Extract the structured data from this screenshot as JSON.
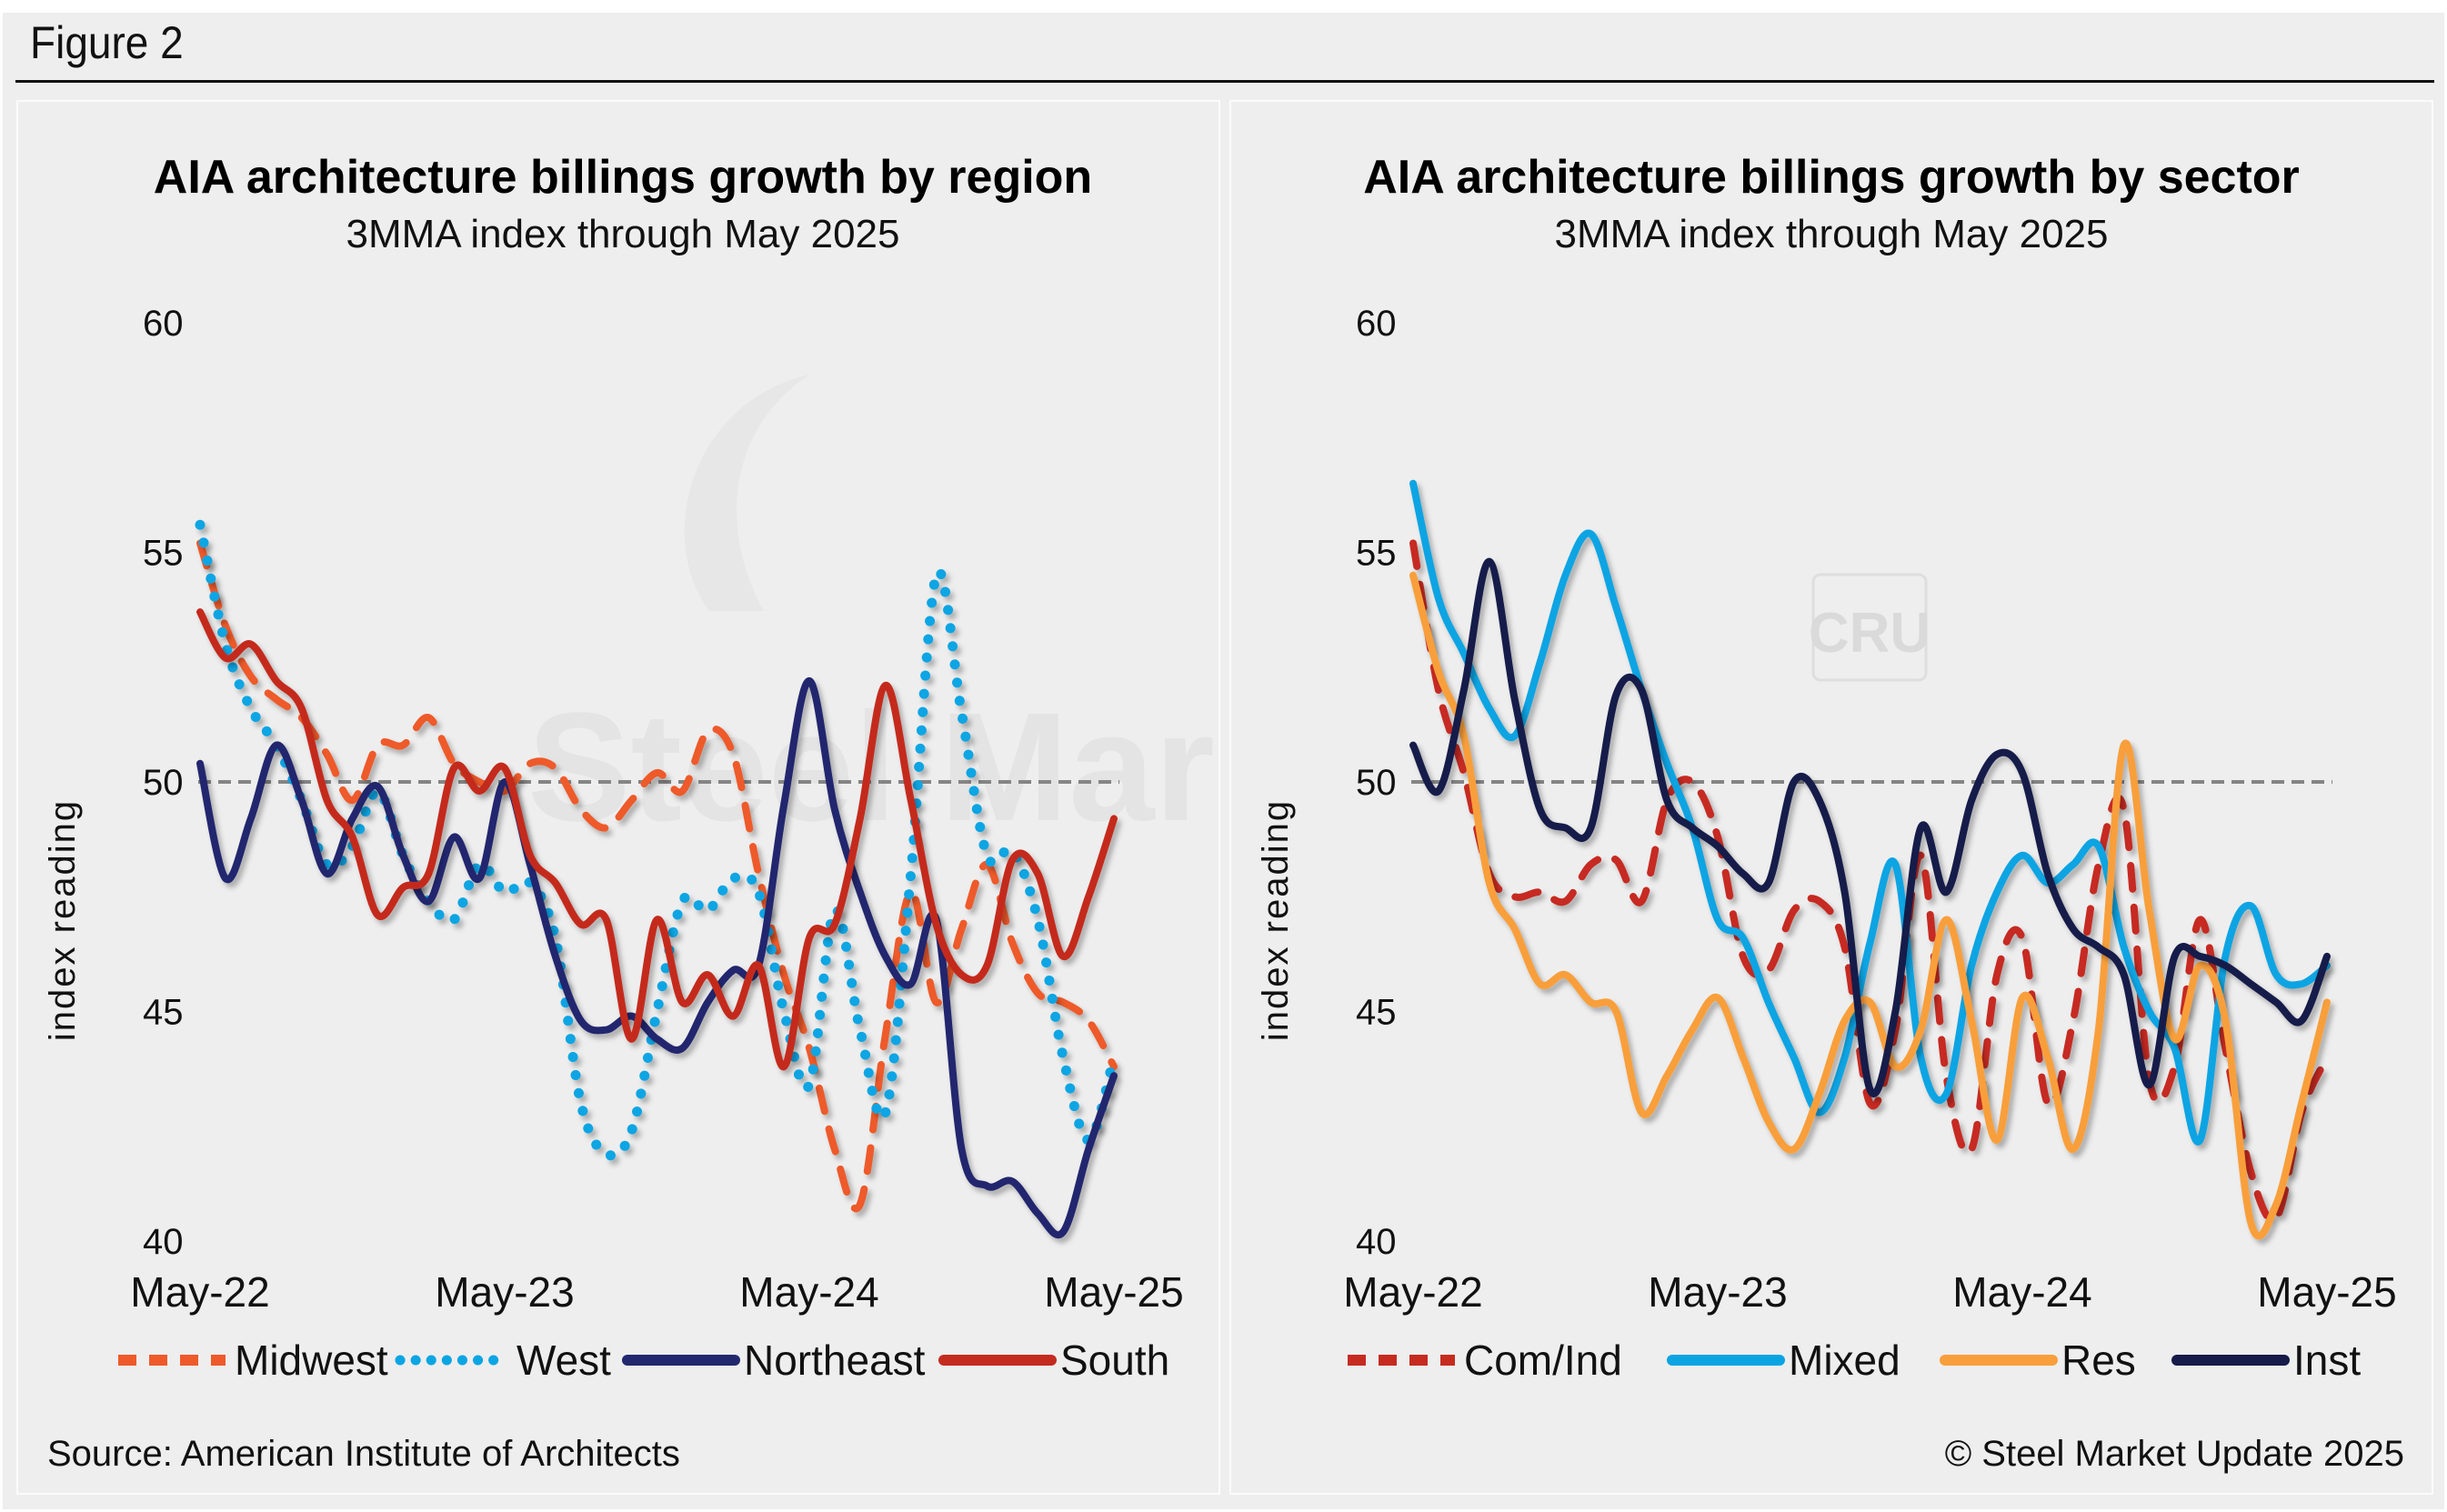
{
  "figure_label": "Figure 2",
  "watermark": {
    "brand": "Steel Market Update",
    "logo": "CRU"
  },
  "chart_data": [
    {
      "type": "line",
      "title": "AIA architecture billings growth by region",
      "subtitle": "3MMA index through May 2025",
      "xlabel": "",
      "ylabel": "index reading",
      "ylim": [
        40,
        60
      ],
      "yticks": [
        40,
        45,
        50,
        55,
        60
      ],
      "xticks": [
        "May-22",
        "May-23",
        "May-24",
        "May-25"
      ],
      "x_start": "May-22",
      "x_end": "May-25",
      "frequency": "monthly",
      "reference_line": {
        "value": 50,
        "style": "dashed",
        "color": "#858585"
      },
      "legend_position": "bottom",
      "grid": false,
      "source": "Source: American Institute of Architects",
      "series": [
        {
          "name": "Midwest",
          "style": "dashed",
          "color": "#ee5a2a",
          "values": [
            55.2,
            53.4,
            52.3,
            51.8,
            51.4,
            50.6,
            49.6,
            50.8,
            50.8,
            51.4,
            50.4,
            50.0,
            49.8,
            50.4,
            50.3,
            49.4,
            49.0,
            49.6,
            50.2,
            49.8,
            51.1,
            50.6,
            48.0,
            45.8,
            44.2,
            42.0,
            40.8,
            44.5,
            47.6,
            45.2,
            46.8,
            48.2,
            46.5,
            45.4,
            45.2,
            44.8,
            43.8
          ]
        },
        {
          "name": "West",
          "style": "dotted",
          "color": "#0aa5e3",
          "values": [
            55.6,
            53.0,
            51.6,
            50.8,
            49.6,
            48.2,
            48.6,
            49.8,
            48.4,
            47.4,
            47.0,
            48.2,
            47.6,
            47.8,
            46.6,
            43.0,
            41.9,
            42.4,
            45.0,
            47.4,
            47.2,
            47.9,
            47.6,
            45.0,
            43.4,
            47.2,
            44.6,
            42.8,
            48.0,
            54.5,
            51.5,
            48.4,
            48.5,
            47.0,
            44.0,
            42.2,
            44.0
          ]
        },
        {
          "name": "Northeast",
          "style": "solid",
          "color": "#22286e",
          "values": [
            50.4,
            47.9,
            49.2,
            50.8,
            49.6,
            48.0,
            49.2,
            49.9,
            48.4,
            47.4,
            48.8,
            47.9,
            50.0,
            48.2,
            46.2,
            44.8,
            44.6,
            44.9,
            44.4,
            44.2,
            45.2,
            45.9,
            46.0,
            49.5,
            52.2,
            49.4,
            47.6,
            46.2,
            45.6,
            47.0,
            42.0,
            41.2,
            41.3,
            40.6,
            40.2,
            42.0,
            43.6
          ]
        },
        {
          "name": "South",
          "style": "solid",
          "color": "#c42b1f",
          "values": [
            53.7,
            52.7,
            53.0,
            52.2,
            51.6,
            49.6,
            48.8,
            47.1,
            47.7,
            48.0,
            50.3,
            49.8,
            50.3,
            48.4,
            47.8,
            46.9,
            47.0,
            44.4,
            47.0,
            45.2,
            45.8,
            44.9,
            46.0,
            43.8,
            46.6,
            46.9,
            49.2,
            52.1,
            49.6,
            46.9,
            45.8,
            46.0,
            48.3,
            48.0,
            46.2,
            47.5,
            49.2
          ]
        }
      ]
    },
    {
      "type": "line",
      "title": "AIA architecture billings growth by sector",
      "subtitle": "3MMA index through May 2025",
      "xlabel": "",
      "ylabel": "index reading",
      "ylim": [
        40,
        60
      ],
      "yticks": [
        40,
        45,
        50,
        55,
        60
      ],
      "xticks": [
        "May-22",
        "May-23",
        "May-24",
        "May-25"
      ],
      "x_start": "May-22",
      "x_end": "May-25",
      "frequency": "monthly",
      "reference_line": {
        "value": 50,
        "style": "dashed",
        "color": "#858585"
      },
      "legend_position": "bottom",
      "grid": false,
      "source": "© Steel Market Update 2025",
      "series": [
        {
          "name": "Com/Ind",
          "style": "dashed",
          "color": "#c62b20",
          "values": [
            55.2,
            52.0,
            50.2,
            48.0,
            47.5,
            47.6,
            47.4,
            48.2,
            48.3,
            47.4,
            49.6,
            50.0,
            48.8,
            46.2,
            45.9,
            47.2,
            47.4,
            46.4,
            43.0,
            44.6,
            48.4,
            43.6,
            42.0,
            45.8,
            46.6,
            43.0,
            44.8,
            48.2,
            49.4,
            43.5,
            43.8,
            47.0,
            44.2,
            41.5,
            40.5,
            42.8,
            44.0
          ]
        },
        {
          "name": "Mixed",
          "style": "solid",
          "color": "#0aa4e3",
          "values": [
            56.5,
            54.0,
            52.8,
            51.6,
            51.0,
            52.6,
            54.5,
            55.4,
            53.8,
            52.0,
            50.4,
            49.0,
            47.0,
            46.6,
            45.2,
            44.0,
            42.8,
            44.0,
            46.5,
            48.2,
            44.0,
            43.2,
            46.0,
            47.6,
            48.4,
            47.8,
            48.2,
            48.6,
            46.4,
            45.0,
            44.2,
            42.2,
            46.2,
            47.3,
            45.8,
            45.6,
            46.0
          ]
        },
        {
          "name": "Res",
          "style": "solid",
          "color": "#f89f3b",
          "values": [
            54.5,
            52.4,
            51.0,
            47.8,
            46.8,
            45.6,
            45.8,
            45.2,
            45.0,
            42.8,
            43.6,
            44.6,
            45.3,
            44.0,
            42.6,
            42.0,
            43.2,
            44.8,
            45.2,
            43.8,
            44.6,
            47.0,
            44.8,
            42.2,
            45.3,
            44.0,
            42.0,
            44.6,
            50.8,
            47.2,
            44.4,
            46.0,
            44.8,
            40.4,
            40.8,
            43.0,
            45.2
          ]
        },
        {
          "name": "Inst",
          "style": "solid",
          "color": "#161b4a",
          "values": [
            50.8,
            49.8,
            52.0,
            54.8,
            51.8,
            49.4,
            49.0,
            49.0,
            51.9,
            52.0,
            49.6,
            49.0,
            48.6,
            48.0,
            47.8,
            50.0,
            49.6,
            47.6,
            43.3,
            45.0,
            49.0,
            47.6,
            49.6,
            50.6,
            50.2,
            48.0,
            46.8,
            46.4,
            45.8,
            43.4,
            46.2,
            46.2,
            46.0,
            45.6,
            45.2,
            44.8,
            46.2
          ]
        }
      ]
    }
  ]
}
